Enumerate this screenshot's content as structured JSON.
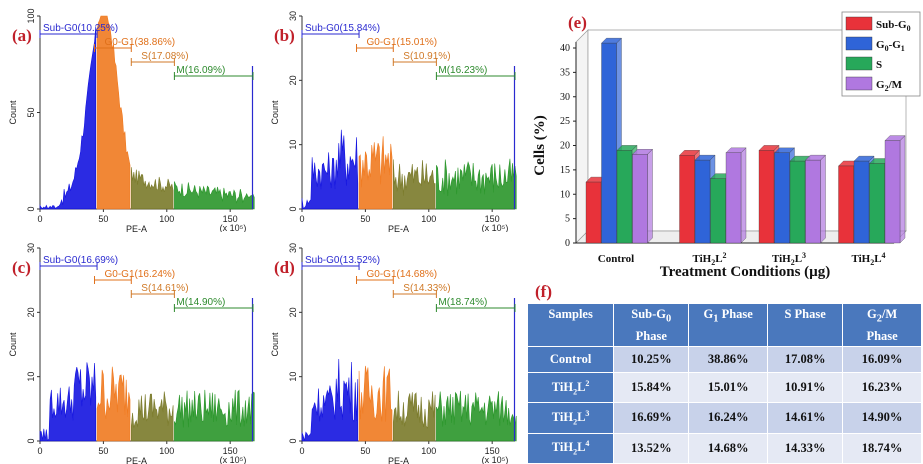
{
  "histograms": [
    {
      "panel": "(a)",
      "ymax": 100,
      "yticks": [
        "0",
        "50",
        "100"
      ],
      "xlabel": "PE-A",
      "xunit": "(x 10⁵)",
      "xticks": [
        "0",
        "50",
        "100",
        "150"
      ],
      "gates": [
        {
          "label": "Sub-G0(10.25%)",
          "color": "#2a2ad0"
        },
        {
          "label": "G0-G1(38.86%)",
          "color": "#e0701a"
        },
        {
          "label": "S(17.08%)",
          "color": "#d07a28"
        },
        {
          "label": "M(16.09%)",
          "color": "#2d8a2d"
        }
      ]
    },
    {
      "panel": "(b)",
      "ymax": 30,
      "yticks": [
        "0",
        "10",
        "20",
        "30"
      ],
      "xlabel": "PE-A",
      "xunit": "(x 10⁵)",
      "xticks": [
        "0",
        "50",
        "100",
        "150"
      ],
      "gates": [
        {
          "label": "Sub-G0(15.84%)",
          "color": "#2a2ad0"
        },
        {
          "label": "G0-G1(15.01%)",
          "color": "#e0701a"
        },
        {
          "label": "S(10.91%)",
          "color": "#d07a28"
        },
        {
          "label": "M(16.23%)",
          "color": "#2d8a2d"
        }
      ]
    },
    {
      "panel": "(c)",
      "ymax": 30,
      "yticks": [
        "0",
        "10",
        "20",
        "30"
      ],
      "xlabel": "PE-A",
      "xunit": "(x 10⁵)",
      "xticks": [
        "0",
        "50",
        "100",
        "150"
      ],
      "gates": [
        {
          "label": "Sub-G0(16.69%)",
          "color": "#2a2ad0"
        },
        {
          "label": "G0-G1(16.24%)",
          "color": "#e0701a"
        },
        {
          "label": "S(14.61%)",
          "color": "#d07a28"
        },
        {
          "label": "M(14.90%)",
          "color": "#2d8a2d"
        }
      ]
    },
    {
      "panel": "(d)",
      "ymax": 30,
      "yticks": [
        "0",
        "10",
        "20",
        "30"
      ],
      "xlabel": "PE-A",
      "xunit": "(x 10⁵)",
      "xticks": [
        "0",
        "50",
        "100",
        "150"
      ],
      "gates": [
        {
          "label": "Sub-G0(13.52%)",
          "color": "#2a2ad0"
        },
        {
          "label": "G0-G1(14.68%)",
          "color": "#e0701a"
        },
        {
          "label": "S(14.33%)",
          "color": "#d07a28"
        },
        {
          "label": "M(18.74%)",
          "color": "#2d8a2d"
        }
      ]
    }
  ],
  "y_axis_label": "Count",
  "chart_data": {
    "type": "bar",
    "panel": "(e)",
    "categories": [
      "Control",
      "TiH2L2",
      "TiH2L3",
      "TiH2L4"
    ],
    "series": [
      {
        "name": "Sub-G0",
        "values": [
          12.5,
          18.0,
          19.0,
          15.8
        ],
        "color": "#e8323a"
      },
      {
        "name": "G0-G1",
        "values": [
          41.0,
          17.0,
          18.5,
          16.8
        ],
        "color": "#2f64d8"
      },
      {
        "name": "S",
        "values": [
          19.0,
          13.2,
          16.8,
          16.3
        ],
        "color": "#27a85a"
      },
      {
        "name": "G2/M",
        "values": [
          18.2,
          18.5,
          17.0,
          21.0
        ],
        "color": "#b078e0"
      }
    ],
    "ylabel": "Cells (%)",
    "xlabel": "Treatment Conditions (µg)",
    "ylim": [
      0,
      40
    ],
    "yticks": [
      "0",
      "5",
      "10",
      "15",
      "20",
      "25",
      "30",
      "35",
      "40"
    ],
    "legend_placement": "top-right"
  },
  "table": {
    "panel": "(f)",
    "headers": [
      "Samples",
      "Sub-G0 Phase",
      "G1 Phase",
      "S Phase",
      "G2/M Phase"
    ],
    "rows": [
      [
        "Control",
        "10.25%",
        "38.86%",
        "17.08%",
        "16.09%"
      ],
      [
        "TiH2L2",
        "15.84%",
        "15.01%",
        "10.91%",
        "16.23%"
      ],
      [
        "TiH2L3",
        "16.69%",
        "16.24%",
        "14.61%",
        "14.90%"
      ],
      [
        "TiH2L4",
        "13.52%",
        "14.68%",
        "14.33%",
        "18.74%"
      ]
    ]
  }
}
